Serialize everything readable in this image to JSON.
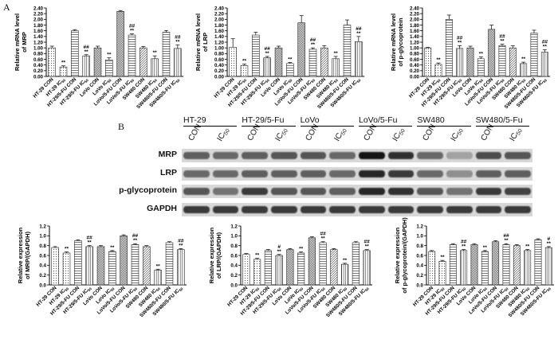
{
  "figure": {
    "panel_a": "A",
    "panel_b": "B"
  },
  "blot": {
    "groups": [
      "HT-29",
      "HT-29/5-Fu",
      "LoVo",
      "LoVo/5-Fu",
      "SW480",
      "SW480/5-Fu"
    ],
    "lane_labels": [
      "CON",
      "IC50",
      "CON",
      "IC50",
      "CON",
      "IC50",
      "CON",
      "IC50",
      "CON",
      "IC50",
      "CON",
      "IC50"
    ],
    "rows": [
      {
        "label": "MRP",
        "intensities": [
          0.55,
          0.5,
          0.55,
          0.6,
          0.6,
          0.5,
          0.95,
          0.8,
          0.5,
          0.2,
          0.65,
          0.6
        ]
      },
      {
        "label": "LRP",
        "intensities": [
          0.5,
          0.5,
          0.55,
          0.55,
          0.55,
          0.5,
          0.85,
          0.75,
          0.5,
          0.3,
          0.55,
          0.55
        ]
      },
      {
        "label": "p-glycoprotein",
        "intensities": [
          0.6,
          0.45,
          0.75,
          0.6,
          0.6,
          0.55,
          0.85,
          0.8,
          0.6,
          0.45,
          0.75,
          0.7
        ]
      },
      {
        "label": "GAPDH",
        "intensities": [
          0.75,
          0.75,
          0.75,
          0.75,
          0.75,
          0.75,
          0.75,
          0.75,
          0.75,
          0.75,
          0.75,
          0.75
        ]
      }
    ]
  },
  "chart_data": [
    {
      "type": "bar",
      "ylabel": "Relative mRNA level of MRP",
      "ylim": [
        0,
        2.4
      ],
      "yticks": [
        "0.00",
        "0.20",
        "0.40",
        "0.60",
        "0.80",
        "1.00",
        "1.20",
        "1.40",
        "1.60",
        "1.80",
        "2.00",
        "2.20",
        "2.40"
      ],
      "categories": [
        "HT-29 CON",
        "HT-29 IC50",
        "HT-29/5-FU CON",
        "HT-29/5-FU IC50",
        "LoVo CON",
        "LoVo IC50",
        "LoVo/5-FU CON",
        "LoVo/5-FU IC50",
        "SW480 CON",
        "SW480 IC50",
        "SW480/5-FU CON",
        "SW480/5-FU IC50"
      ],
      "values": [
        1.0,
        0.33,
        1.6,
        0.72,
        1.0,
        0.58,
        2.28,
        1.45,
        1.0,
        0.62,
        1.55,
        0.98
      ],
      "errors": [
        0.06,
        0.04,
        0.04,
        0.04,
        0.06,
        0.07,
        0.03,
        0.04,
        0.05,
        0.1,
        0.06,
        0.12
      ],
      "marks": [
        "",
        "**",
        "",
        "##\n**",
        "",
        "**",
        "",
        "##\n**",
        "",
        "**",
        "",
        "##\n**"
      ]
    },
    {
      "type": "bar",
      "ylabel": "Relative mRNA level of LRP",
      "ylim": [
        0,
        2.4
      ],
      "yticks": [
        "0.00",
        "0.20",
        "0.40",
        "0.60",
        "0.80",
        "1.00",
        "1.20",
        "1.40",
        "1.60",
        "1.80",
        "2.00",
        "2.20",
        "2.40"
      ],
      "categories": [
        "HT-29 CON",
        "HT-29 IC50",
        "HT-29/5-FU CON",
        "HT-29/5-FU IC50",
        "LoVo CON",
        "LoVo IC50",
        "LoVo/5-FU CON",
        "LoVo/5-FU IC50",
        "SW480 CON",
        "SW480 IC50",
        "SW480/5-FU CON",
        "SW480/5-FU IC50"
      ],
      "values": [
        1.02,
        0.38,
        1.45,
        0.65,
        1.0,
        0.45,
        1.88,
        0.95,
        1.0,
        0.62,
        1.8,
        1.22
      ],
      "errors": [
        0.3,
        0.05,
        0.1,
        0.05,
        0.06,
        0.04,
        0.25,
        0.05,
        0.08,
        0.08,
        0.18,
        0.18
      ],
      "marks": [
        "",
        "**",
        "",
        "##\n**",
        "",
        "**",
        "",
        "##\n**",
        "",
        "**",
        "",
        "##\n**"
      ]
    },
    {
      "type": "bar",
      "ylabel": "Relative mRNA level of p-glycoprotein",
      "ylim": [
        0,
        2.4
      ],
      "yticks": [
        "0.00",
        "0.20",
        "0.40",
        "0.60",
        "0.80",
        "1.00",
        "1.20",
        "1.40",
        "1.60",
        "1.80",
        "2.00",
        "2.20",
        "2.40"
      ],
      "categories": [
        "HT-29 CON",
        "HT-29 IC50",
        "HT-29/5-FU CON",
        "HT-29/5-FU IC50",
        "LoVo CON",
        "LoVo IC50",
        "LoVo/5-FU CON",
        "LoVo/5-FU IC50",
        "SW480 CON",
        "SW480 IC50",
        "SW480/5-FU CON",
        "SW480/5-FU IC50"
      ],
      "values": [
        1.0,
        0.42,
        2.0,
        0.98,
        1.0,
        0.62,
        1.65,
        1.08,
        1.0,
        0.45,
        1.52,
        0.85
      ],
      "errors": [
        0.02,
        0.05,
        0.15,
        0.1,
        0.06,
        0.06,
        0.15,
        0.05,
        0.07,
        0.05,
        0.1,
        0.08
      ],
      "marks": [
        "",
        "**",
        "",
        "##\n**",
        "",
        "**",
        "",
        "##\n**",
        "",
        "**",
        "",
        "##\n**"
      ]
    },
    {
      "type": "bar",
      "ylabel": "Relative expression of MRP/(GAPDH)",
      "ylim": [
        0,
        1.2
      ],
      "yticks": [
        "0.0",
        "0.2",
        "0.4",
        "0.6",
        "0.8",
        "1.0",
        "1.2"
      ],
      "categories": [
        "HT-29 CON",
        "HT-29 IC50",
        "HT-29/5-FU CON",
        "HT-29/5-FU IC50",
        "LoVo CON",
        "LoVo IC50",
        "LoVo/5-FU CON",
        "LoVo/5-FU IC50",
        "SW480 CON",
        "SW480 IC50",
        "SW480/5-FU CON",
        "SW480/5-FU IC50"
      ],
      "values": [
        0.76,
        0.65,
        0.9,
        0.78,
        0.78,
        0.68,
        1.0,
        0.82,
        0.78,
        0.3,
        0.86,
        0.72
      ],
      "errors": [
        0.02,
        0.02,
        0.02,
        0.02,
        0.02,
        0.02,
        0.02,
        0.02,
        0.02,
        0.02,
        0.02,
        0.02
      ],
      "marks": [
        "",
        "**",
        "",
        "##\n**",
        "",
        "**",
        "",
        "##\n**",
        "",
        "**",
        "",
        "##\n**"
      ]
    },
    {
      "type": "bar",
      "ylabel": "Relative expression of LRP/(GAPDH)",
      "ylim": [
        0,
        1.2
      ],
      "yticks": [
        "0.0",
        "0.2",
        "0.4",
        "0.6",
        "0.8",
        "1.0",
        "1.2"
      ],
      "categories": [
        "HT-29 CON",
        "HT-29 IC50",
        "HT-29/5-FU CON",
        "HT-29/5-FU IC50",
        "LoVo CON",
        "LoVo IC50",
        "LoVo/5-FU CON",
        "LoVo/5-FU IC50",
        "SW480 CON",
        "SW480 IC50",
        "SW480/5-FU CON",
        "SW480/5-FU IC50"
      ],
      "values": [
        0.62,
        0.52,
        0.7,
        0.6,
        0.72,
        0.65,
        0.96,
        0.86,
        0.72,
        0.42,
        0.86,
        0.7
      ],
      "errors": [
        0.02,
        0.02,
        0.02,
        0.02,
        0.02,
        0.02,
        0.02,
        0.02,
        0.02,
        0.02,
        0.02,
        0.02
      ],
      "marks": [
        "",
        "**",
        "",
        "#\n**",
        "",
        "**",
        "",
        "##\n**",
        "",
        "**",
        "",
        "##\n**"
      ]
    },
    {
      "type": "bar",
      "ylabel": "Relative expression of p-glycoprotein/(GAPDH)",
      "ylim": [
        0,
        1.2
      ],
      "yticks": [
        "0.0",
        "0.2",
        "0.4",
        "0.6",
        "0.8",
        "1.0",
        "1.2"
      ],
      "categories": [
        "HT-29 CON",
        "HT-29 IC50",
        "HT-29/5-FU CON",
        "HT-29/5-FU IC50",
        "LoVo CON",
        "LoVo IC50",
        "LoVo/5-FU CON",
        "LoVo/5-FU IC50",
        "SW480 CON",
        "SW480 IC50",
        "SW480/5-FU CON",
        "SW480/5-FU IC50"
      ],
      "values": [
        0.68,
        0.48,
        0.82,
        0.7,
        0.82,
        0.68,
        0.88,
        0.82,
        0.8,
        0.7,
        0.92,
        0.76
      ],
      "errors": [
        0.02,
        0.02,
        0.02,
        0.02,
        0.02,
        0.02,
        0.02,
        0.02,
        0.02,
        0.02,
        0.02,
        0.02
      ],
      "marks": [
        "",
        "**",
        "",
        "##\n**",
        "",
        "**",
        "",
        "##\n**",
        "",
        "**",
        "",
        "#\n**"
      ]
    }
  ]
}
